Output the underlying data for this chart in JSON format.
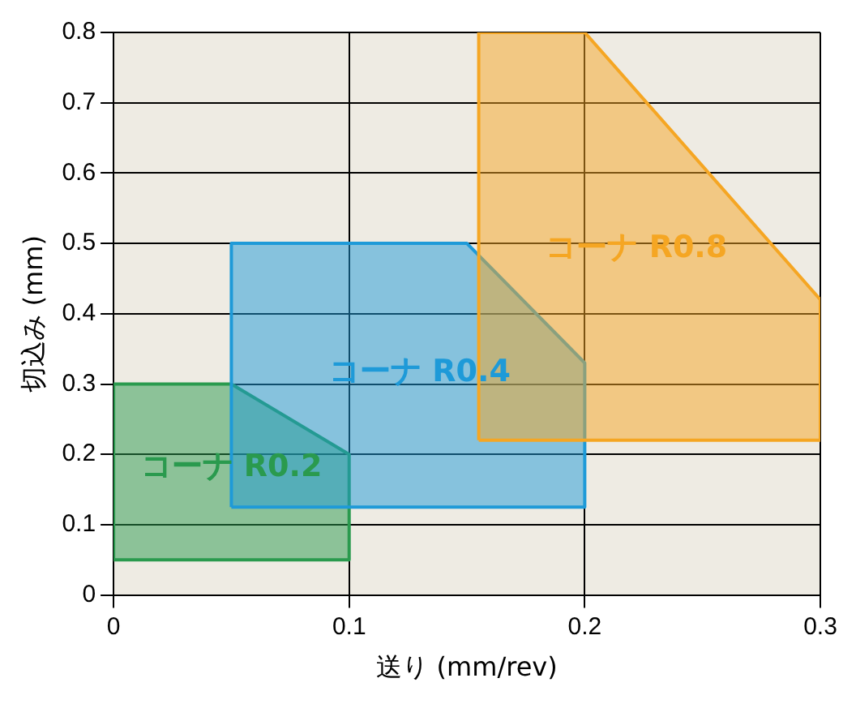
{
  "chart_data": {
    "type": "area",
    "xlabel": "送り (mm/rev)",
    "ylabel": "切込み (mm)",
    "xlim": [
      0,
      0.3
    ],
    "ylim": [
      0,
      0.8
    ],
    "xticks": [
      0,
      0.1,
      0.2,
      0.3
    ],
    "yticks": [
      0,
      0.1,
      0.2,
      0.3,
      0.4,
      0.5,
      0.6,
      0.7,
      0.8
    ],
    "grid": true,
    "series": [
      {
        "name": "コーナ R0.8",
        "color": "#f5a623",
        "x": [
          0.155,
          0.155,
          0.2,
          0.3,
          0.3
        ],
        "values": [
          0.22,
          0.8,
          0.8,
          0.42,
          0.22
        ]
      },
      {
        "name": "コーナ R0.4",
        "color": "#1e9ad8",
        "x": [
          0.05,
          0.05,
          0.15,
          0.2,
          0.2
        ],
        "values": [
          0.125,
          0.5,
          0.5,
          0.33,
          0.125
        ]
      },
      {
        "name": "コーナ R0.2",
        "color": "#2a9a4e",
        "x": [
          0,
          0,
          0.05,
          0.1,
          0.1
        ],
        "values": [
          0.05,
          0.3,
          0.3,
          0.2,
          0.05
        ]
      }
    ]
  }
}
